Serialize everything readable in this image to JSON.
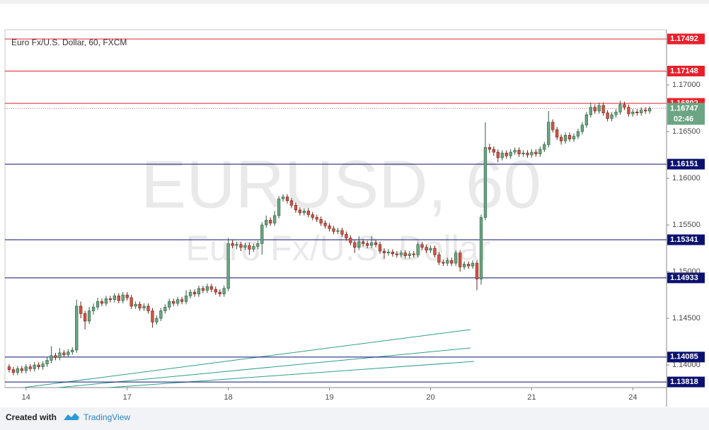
{
  "chart_data": {
    "type": "candlestick",
    "legend_title": "Euro Fx/U.S. Dollar, 60, FXCM",
    "watermark": "EURUSD, 60",
    "watermark_subtitle": "Euro Fx/U.S. Dollar",
    "footer": {
      "prefix": "Created with",
      "brand": "TradingView"
    },
    "up_color": "#6ba583",
    "down_color": "#d75442",
    "xlim": [
      -5,
      152
    ],
    "xticks": [
      {
        "value": 0,
        "label": "14"
      },
      {
        "value": 24,
        "label": "17"
      },
      {
        "value": 48,
        "label": "18"
      },
      {
        "value": 72,
        "label": "19"
      },
      {
        "value": 96,
        "label": "20"
      },
      {
        "value": 120,
        "label": "21"
      },
      {
        "value": 144,
        "label": "24"
      }
    ],
    "ylim": [
      1.13758,
      1.17591
    ],
    "yticks": [
      {
        "value": 1.17,
        "label": "1.17000"
      },
      {
        "value": 1.165,
        "label": "1.16500"
      },
      {
        "value": 1.16,
        "label": "1.16000"
      },
      {
        "value": 1.155,
        "label": "1.15500"
      },
      {
        "value": 1.15,
        "label": "1.15000"
      },
      {
        "value": 1.145,
        "label": "1.14500"
      },
      {
        "value": 1.14,
        "label": "1.14000"
      }
    ],
    "grid": false,
    "levels": [
      {
        "value": 1.17492,
        "color": "#e8202a"
      },
      {
        "value": 1.17148,
        "color": "#e8202a"
      },
      {
        "value": 1.16802,
        "color": "#e8202a"
      },
      {
        "value": 1.16151,
        "color": "#0b1170"
      },
      {
        "value": 1.15341,
        "color": "#0b1170"
      },
      {
        "value": 1.14933,
        "color": "#0b1170"
      },
      {
        "value": 1.14085,
        "color": "#0b1170"
      },
      {
        "value": 1.13818,
        "color": "#0b1170"
      }
    ],
    "last_price": 1.16747,
    "last_price_color": "#6ba583",
    "countdown": "02:46",
    "x": [
      -4,
      -3,
      -2,
      -1,
      0,
      1,
      2,
      3,
      4,
      5,
      6,
      7,
      8,
      9,
      10,
      11,
      12,
      13,
      14,
      15,
      16,
      17,
      18,
      19,
      20,
      21,
      22,
      23,
      24,
      25,
      26,
      27,
      28,
      29,
      30,
      31,
      32,
      33,
      34,
      35,
      36,
      37,
      38,
      39,
      40,
      41,
      42,
      43,
      44,
      45,
      46,
      47,
      48,
      49,
      50,
      51,
      52,
      53,
      54,
      55,
      56,
      57,
      58,
      59,
      60,
      61,
      62,
      63,
      64,
      65,
      66,
      67,
      68,
      69,
      70,
      71,
      72,
      73,
      74,
      75,
      76,
      77,
      78,
      79,
      80,
      81,
      82,
      83,
      84,
      85,
      86,
      87,
      88,
      89,
      90,
      91,
      92,
      93,
      94,
      95,
      96,
      97,
      98,
      99,
      100,
      101,
      102,
      103,
      104,
      105,
      106,
      107,
      108,
      109,
      110,
      111,
      112,
      113,
      114,
      115,
      116,
      117,
      118,
      119,
      120,
      121,
      122,
      123,
      124,
      125,
      126,
      127,
      128,
      129,
      130,
      131,
      132,
      133,
      134,
      135,
      136,
      137,
      138,
      139,
      140,
      141,
      142,
      143,
      144,
      145,
      146,
      147,
      148
    ],
    "open": [
      1.1398,
      1.1395,
      1.1392,
      1.1396,
      1.1394,
      1.1398,
      1.1396,
      1.14,
      1.1398,
      1.1401,
      1.1405,
      1.141,
      1.1408,
      1.1413,
      1.1411,
      1.1414,
      1.1416,
      1.1463,
      1.1455,
      1.1447,
      1.1458,
      1.1462,
      1.1468,
      1.1466,
      1.1471,
      1.147,
      1.1474,
      1.1469,
      1.1475,
      1.1472,
      1.1463,
      1.1465,
      1.1461,
      1.1463,
      1.1458,
      1.1446,
      1.145,
      1.1458,
      1.1462,
      1.1468,
      1.1466,
      1.147,
      1.1468,
      1.1474,
      1.1478,
      1.1476,
      1.1482,
      1.148,
      1.1484,
      1.1481,
      1.1478,
      1.1476,
      1.1482,
      1.153,
      1.1528,
      1.1529,
      1.1526,
      1.1528,
      1.1524,
      1.1527,
      1.153,
      1.155,
      1.1555,
      1.1552,
      1.156,
      1.1578,
      1.158,
      1.1576,
      1.1571,
      1.1566,
      1.1563,
      1.1565,
      1.1561,
      1.1558,
      1.1556,
      1.1552,
      1.1549,
      1.1546,
      1.1543,
      1.1544,
      1.154,
      1.1536,
      1.1531,
      1.1526,
      1.1532,
      1.153,
      1.1528,
      1.1531,
      1.1529,
      1.1522,
      1.152,
      1.1521,
      1.1519,
      1.1518,
      1.152,
      1.1517,
      1.1519,
      1.1518,
      1.1529,
      1.1526,
      1.1523,
      1.1525,
      1.1518,
      1.151,
      1.1509,
      1.1512,
      1.1509,
      1.152,
      1.1505,
      1.1508,
      1.1506,
      1.1509,
      1.1492,
      1.1558,
      1.1633,
      1.1631,
      1.1628,
      1.1622,
      1.1627,
      1.1624,
      1.1628,
      1.163,
      1.1626,
      1.1627,
      1.1625,
      1.1628,
      1.1626,
      1.1631,
      1.1636,
      1.166,
      1.1652,
      1.1644,
      1.164,
      1.1646,
      1.1642,
      1.1645,
      1.165,
      1.1657,
      1.1668,
      1.1676,
      1.1672,
      1.1678,
      1.167,
      1.1664,
      1.1668,
      1.1671,
      1.1679,
      1.1676,
      1.1669,
      1.1671,
      1.167,
      1.1673,
      1.1672
    ],
    "high": [
      1.1401,
      1.1398,
      1.1399,
      1.1399,
      1.1401,
      1.1401,
      1.1403,
      1.1403,
      1.1404,
      1.1408,
      1.142,
      1.1413,
      1.1418,
      1.1416,
      1.1417,
      1.1419,
      1.147,
      1.1468,
      1.1458,
      1.1462,
      1.1466,
      1.1472,
      1.1471,
      1.1474,
      1.1474,
      1.1477,
      1.1477,
      1.1478,
      1.1478,
      1.1475,
      1.1468,
      1.1468,
      1.1466,
      1.1466,
      1.1461,
      1.1453,
      1.1461,
      1.1465,
      1.1471,
      1.1471,
      1.1473,
      1.1473,
      1.148,
      1.1481,
      1.1481,
      1.1485,
      1.1485,
      1.1487,
      1.1487,
      1.1484,
      1.1481,
      1.1485,
      1.1536,
      1.1534,
      1.1532,
      1.1532,
      1.1531,
      1.1531,
      1.153,
      1.1533,
      1.1553,
      1.156,
      1.1558,
      1.1565,
      1.1581,
      1.1583,
      1.1583,
      1.1579,
      1.1574,
      1.1569,
      1.1568,
      1.1568,
      1.1564,
      1.1561,
      1.1559,
      1.1555,
      1.1552,
      1.1549,
      1.1547,
      1.1547,
      1.1543,
      1.1539,
      1.1534,
      1.1538,
      1.1535,
      1.1533,
      1.1538,
      1.1534,
      1.1532,
      1.1525,
      1.1524,
      1.1524,
      1.1522,
      1.1523,
      1.1523,
      1.1522,
      1.1522,
      1.1532,
      1.1532,
      1.1529,
      1.1528,
      1.1528,
      1.1521,
      1.1513,
      1.1515,
      1.1515,
      1.1523,
      1.1523,
      1.1511,
      1.1511,
      1.1512,
      1.1512,
      1.1561,
      1.166,
      1.1637,
      1.1634,
      1.1631,
      1.163,
      1.163,
      1.1631,
      1.1633,
      1.1633,
      1.163,
      1.163,
      1.1631,
      1.1631,
      1.1634,
      1.1639,
      1.1672,
      1.1663,
      1.1655,
      1.1647,
      1.1649,
      1.1649,
      1.1648,
      1.1653,
      1.166,
      1.1671,
      1.1681,
      1.1679,
      1.1681,
      1.1681,
      1.1673,
      1.1671,
      1.1674,
      1.1683,
      1.1682,
      1.1679,
      1.1674,
      1.1674,
      1.1676,
      1.1676,
      1.1677
    ],
    "low": [
      1.1392,
      1.1389,
      1.1389,
      1.1391,
      1.1391,
      1.1393,
      1.1393,
      1.1395,
      1.1395,
      1.1398,
      1.1402,
      1.1405,
      1.1405,
      1.1408,
      1.1408,
      1.1411,
      1.1413,
      1.145,
      1.1438,
      1.1444,
      1.1454,
      1.1459,
      1.1463,
      1.1463,
      1.1467,
      1.1467,
      1.1466,
      1.1466,
      1.1469,
      1.146,
      1.146,
      1.1458,
      1.1458,
      1.1455,
      1.144,
      1.1443,
      1.1447,
      1.1455,
      1.1459,
      1.1463,
      1.1463,
      1.1465,
      1.1465,
      1.1471,
      1.1473,
      1.1473,
      1.1477,
      1.1477,
      1.1478,
      1.1475,
      1.1473,
      1.1473,
      1.1479,
      1.1525,
      1.1524,
      1.1522,
      1.1523,
      1.1518,
      1.1521,
      1.1524,
      1.1518,
      1.1547,
      1.1549,
      1.1549,
      1.1557,
      1.1575,
      1.1573,
      1.1568,
      1.1563,
      1.156,
      1.156,
      1.1558,
      1.1555,
      1.1553,
      1.1549,
      1.1546,
      1.1543,
      1.154,
      1.154,
      1.1537,
      1.1533,
      1.1528,
      1.152,
      1.1523,
      1.1527,
      1.1525,
      1.1525,
      1.1526,
      1.1519,
      1.1514,
      1.1517,
      1.1516,
      1.1515,
      1.1515,
      1.1514,
      1.1514,
      1.1515,
      1.1515,
      1.1523,
      1.152,
      1.152,
      1.1515,
      1.1507,
      1.1506,
      1.1506,
      1.1506,
      1.1506,
      1.15,
      1.1502,
      1.1503,
      1.1503,
      1.148,
      1.1486,
      1.1555,
      1.1627,
      1.1624,
      1.1617,
      1.1619,
      1.1621,
      1.1621,
      1.1625,
      1.1623,
      1.1623,
      1.1622,
      1.1622,
      1.1623,
      1.1623,
      1.1628,
      1.1633,
      1.1649,
      1.1641,
      1.1636,
      1.1637,
      1.1639,
      1.1639,
      1.1642,
      1.1647,
      1.1654,
      1.1665,
      1.1669,
      1.1669,
      1.1667,
      1.1661,
      1.1661,
      1.1665,
      1.1668,
      1.1673,
      1.1666,
      1.1666,
      1.1667,
      1.1667,
      1.1669,
      1.1669
    ],
    "close": [
      1.1395,
      1.1392,
      1.1396,
      1.1394,
      1.1398,
      1.1396,
      1.14,
      1.1398,
      1.1401,
      1.1405,
      1.141,
      1.1408,
      1.1413,
      1.1411,
      1.1414,
      1.1416,
      1.1463,
      1.1455,
      1.1447,
      1.1458,
      1.1462,
      1.1468,
      1.1466,
      1.1471,
      1.147,
      1.1474,
      1.1469,
      1.1475,
      1.1472,
      1.1463,
      1.1465,
      1.1461,
      1.1463,
      1.1458,
      1.1446,
      1.145,
      1.1458,
      1.1462,
      1.1468,
      1.1466,
      1.147,
      1.1468,
      1.1474,
      1.1478,
      1.1476,
      1.1482,
      1.148,
      1.1484,
      1.1481,
      1.1478,
      1.1476,
      1.1482,
      1.153,
      1.1528,
      1.1529,
      1.1526,
      1.1528,
      1.1524,
      1.1527,
      1.153,
      1.155,
      1.1555,
      1.1552,
      1.156,
      1.1578,
      1.158,
      1.1576,
      1.1571,
      1.1566,
      1.1563,
      1.1565,
      1.1561,
      1.1558,
      1.1556,
      1.1552,
      1.1549,
      1.1546,
      1.1543,
      1.1544,
      1.154,
      1.1536,
      1.1531,
      1.1526,
      1.1532,
      1.153,
      1.1528,
      1.1531,
      1.1529,
      1.1522,
      1.152,
      1.1521,
      1.1519,
      1.1518,
      1.152,
      1.1517,
      1.1519,
      1.1518,
      1.1529,
      1.1526,
      1.1523,
      1.1525,
      1.1518,
      1.151,
      1.1509,
      1.1512,
      1.1509,
      1.152,
      1.1505,
      1.1508,
      1.1506,
      1.1509,
      1.1492,
      1.1558,
      1.1633,
      1.1631,
      1.1628,
      1.1622,
      1.1627,
      1.1624,
      1.1628,
      1.163,
      1.1626,
      1.1627,
      1.1625,
      1.1628,
      1.1626,
      1.1631,
      1.1636,
      1.166,
      1.1652,
      1.1644,
      1.164,
      1.1646,
      1.1642,
      1.1645,
      1.165,
      1.1657,
      1.1668,
      1.1676,
      1.1672,
      1.1678,
      1.167,
      1.1664,
      1.1668,
      1.1671,
      1.1679,
      1.1676,
      1.1669,
      1.1671,
      1.167,
      1.1673,
      1.1672,
      1.16747
    ]
  }
}
